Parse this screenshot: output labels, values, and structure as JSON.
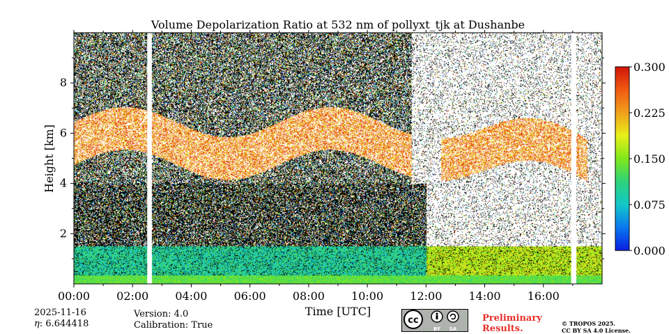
{
  "chart_data": {
    "type": "heatmap",
    "title": "Volume Depolarization Ratio at 532 nm of pollyxt_tjk at Dushanbe",
    "xlabel": "Time [UTC]",
    "ylabel": "Height [km]",
    "xlim_hours": [
      0,
      18
    ],
    "ylim_km": [
      0,
      10
    ],
    "x_ticks": [
      {
        "value": 0,
        "label": "00:00"
      },
      {
        "value": 2,
        "label": "02:00"
      },
      {
        "value": 4,
        "label": "04:00"
      },
      {
        "value": 6,
        "label": "06:00"
      },
      {
        "value": 8,
        "label": "08:00"
      },
      {
        "value": 10,
        "label": "10:00"
      },
      {
        "value": 12,
        "label": "12:00"
      },
      {
        "value": 14,
        "label": "14:00"
      },
      {
        "value": 16,
        "label": "16:00"
      }
    ],
    "y_ticks": [
      {
        "value": 2,
        "label": "2"
      },
      {
        "value": 4,
        "label": "4"
      },
      {
        "value": 6,
        "label": "6"
      },
      {
        "value": 8,
        "label": "8"
      }
    ],
    "colorbar": {
      "min": 0.0,
      "max": 0.3,
      "ticks": [
        {
          "value": 0.0,
          "label": "0.000"
        },
        {
          "value": 0.075,
          "label": "0.075"
        },
        {
          "value": 0.15,
          "label": "0.150"
        },
        {
          "value": 0.225,
          "label": "0.225"
        },
        {
          "value": 0.3,
          "label": "0.300"
        }
      ],
      "colors": [
        "#0a1ee0",
        "#0a78f0",
        "#12c8c8",
        "#2ed27a",
        "#7fe81a",
        "#e8f01a",
        "#f0a01a",
        "#f05a12",
        "#d21408"
      ]
    },
    "data_gaps_hours": [
      [
        2.5,
        2.65
      ],
      [
        16.95,
        17.1
      ]
    ],
    "layers": [
      {
        "name": "aerosol layer",
        "base_km": 0.0,
        "top_km": 1.5,
        "value_approx": 0.05
      },
      {
        "name": "dust layer",
        "base_km": 4.5,
        "top_km": 7.0,
        "value_approx": 0.22
      }
    ]
  },
  "footer": {
    "date": "2025-11-16",
    "eta": "6.644418",
    "eta_label": "η",
    "version": "Version: 4.0",
    "calibration": "Calibration: True",
    "cc_icon": "cc-by-sa-icon",
    "license_labels": [
      "BY",
      "SA"
    ],
    "preliminary_line1": "Preliminary",
    "preliminary_line2": "Results.",
    "copyright_line1": "© TROPOS 2025.",
    "copyright_line2": "CC BY SA 4.0 License."
  }
}
